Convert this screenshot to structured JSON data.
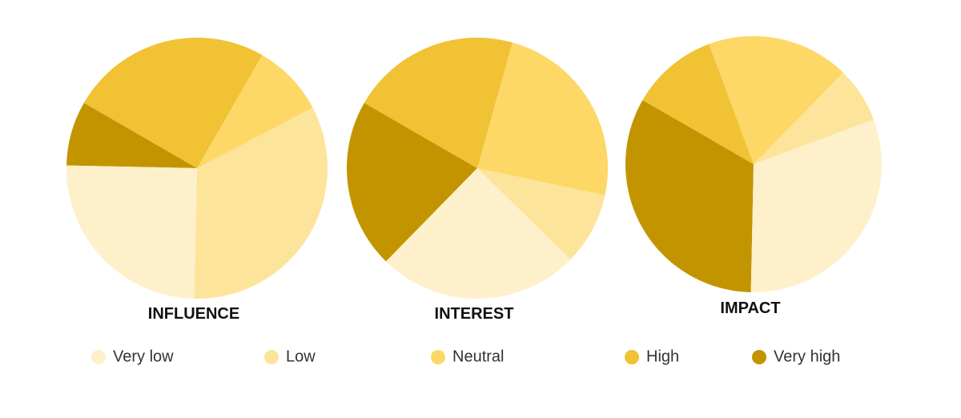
{
  "chart_data": [
    {
      "type": "pie",
      "title": "INFLUENCE",
      "categories": [
        "Very low",
        "Low",
        "Neutral",
        "High",
        "Very high"
      ],
      "values": [
        25,
        33,
        9,
        25,
        8
      ],
      "colors": [
        "#fef0cb",
        "#fde49b",
        "#fdd866",
        "#f0c234",
        "#c29500"
      ]
    },
    {
      "type": "pie",
      "title": "INTEREST",
      "categories": [
        "Very low",
        "Low",
        "Neutral",
        "High",
        "Very high"
      ],
      "values": [
        25,
        9,
        24,
        21,
        21
      ],
      "colors": [
        "#fef0cb",
        "#fde49b",
        "#fdd866",
        "#f0c234",
        "#c29500"
      ]
    },
    {
      "type": "pie",
      "title": "IMPACT",
      "categories": [
        "Very low",
        "Low",
        "Neutral",
        "High",
        "Very high"
      ],
      "values": [
        31,
        7,
        18,
        11,
        33
      ],
      "colors": [
        "#fef0cb",
        "#fde49b",
        "#fdd866",
        "#f0c234",
        "#c29500"
      ]
    }
  ]
}
